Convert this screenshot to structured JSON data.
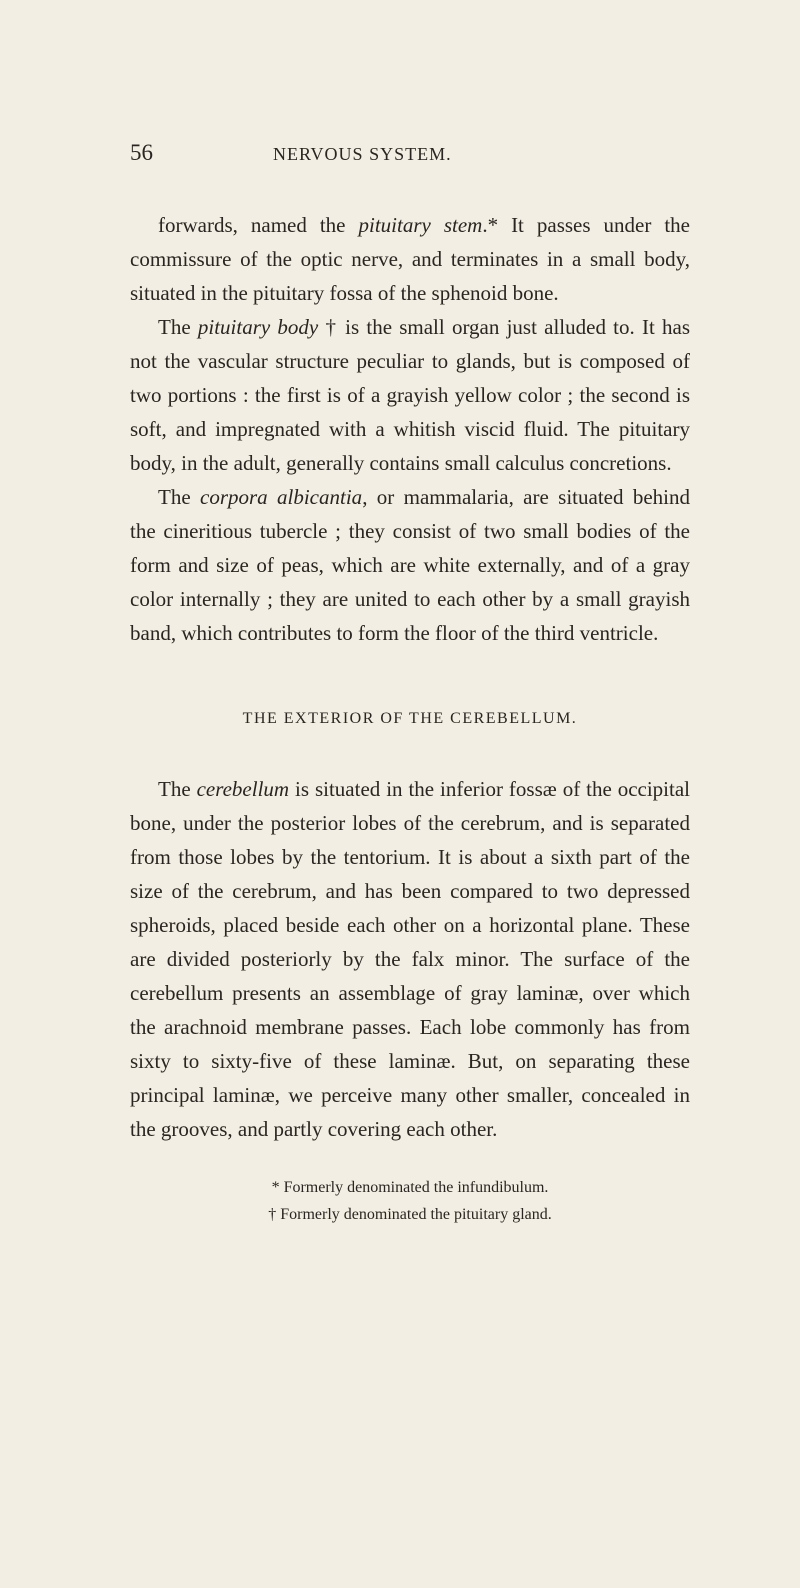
{
  "page": {
    "number": "56",
    "running_head": "NERVOUS SYSTEM.",
    "background_color": "#f2eee3",
    "text_color": "#2a2520",
    "body_fontsize": 21,
    "heading_fontsize": 16,
    "footnote_fontsize": 16,
    "line_height": 1.62
  },
  "paragraphs": {
    "p1_a": "forwards, named the ",
    "p1_i1": "pituitary stem",
    "p1_b": ".*  It passes under the commissure of the optic nerve, and terminates in a small body, situated in the pituitary fossa of the sphenoid bone.",
    "p2_a": "The ",
    "p2_i1": "pituitary body",
    "p2_b": " † is the small organ just alluded to. It has not the vascular structure peculiar to glands, but is composed of two portions : the first is of a grayish yellow color ; the second is soft, and impregnated with a whitish viscid fluid.  The pituitary body, in the adult, generally contains small calculus concretions.",
    "p3_a": "The ",
    "p3_i1": "corpora albicantia",
    "p3_b": ", or mammalaria, are situated behind the cineritious tubercle ; they consist of two small bodies of the form and size of peas, which are white externally, and of a gray color internally ; they are united to each other by a small grayish band, which contributes to form the floor of the third ventricle.",
    "section_heading": "THE EXTERIOR OF THE CEREBELLUM.",
    "p4_a": "The ",
    "p4_i1": "cerebellum",
    "p4_b": " is situated in the inferior fossæ of the occipital bone, under the posterior lobes of the cerebrum, and is separated from those lobes by the tentorium.  It is about a sixth part of the size of the cerebrum, and has been compared to two depressed spheroids, placed beside each other on a horizontal plane.  These are divided posteriorly by the falx minor.  The surface of the cerebellum presents an assemblage of gray laminæ, over which the arachnoid membrane passes.  Each lobe commonly has from sixty to sixty-five of these laminæ.  But, on separating these principal laminæ, we perceive many other smaller, concealed in the grooves, and partly covering each other."
  },
  "footnotes": {
    "f1": "* Formerly denominated the infundibulum.",
    "f2": "† Formerly denominated the pituitary gland."
  }
}
